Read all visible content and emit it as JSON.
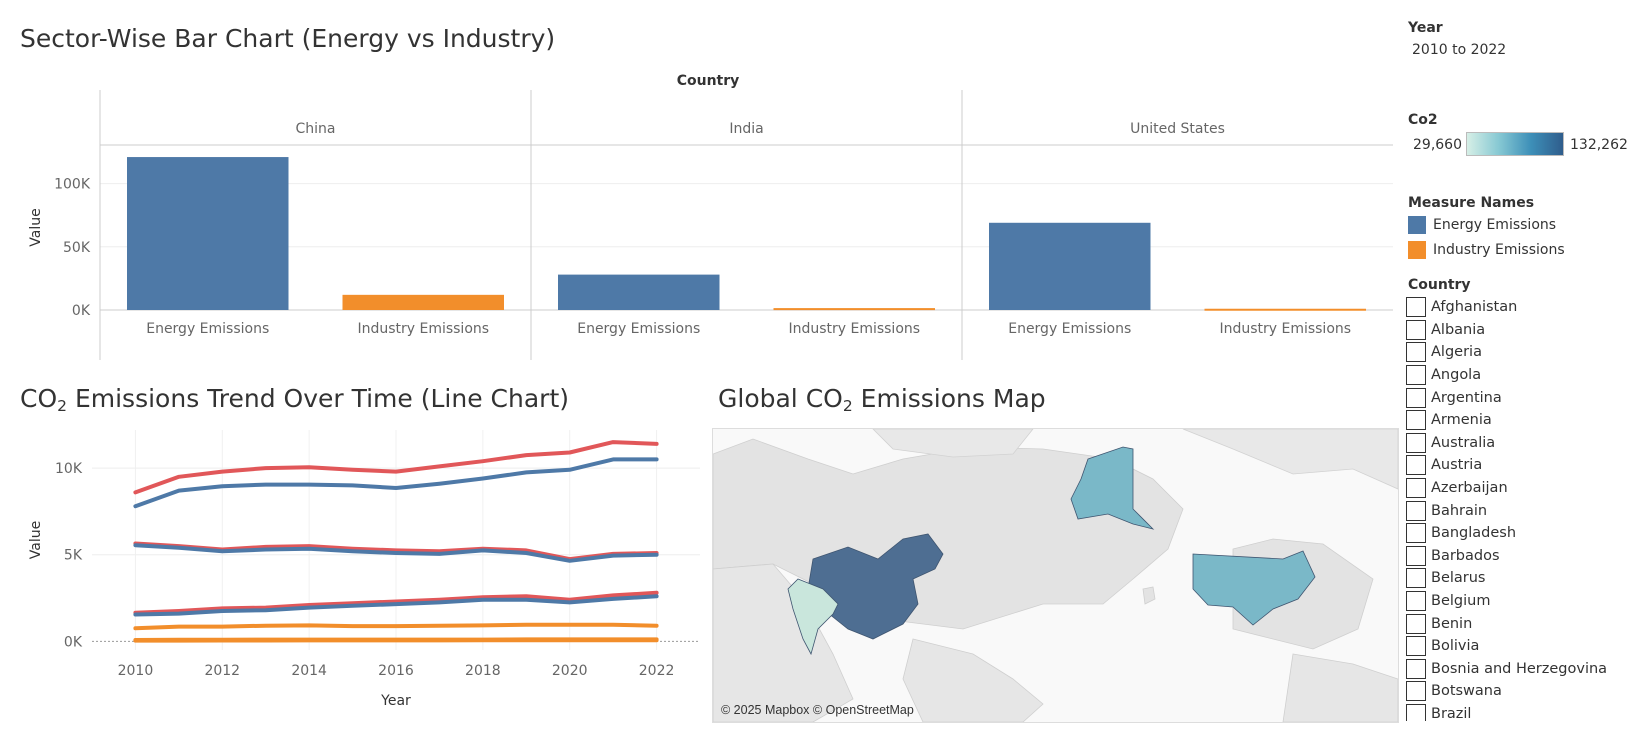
{
  "bar_panel": {
    "title": "Sector-Wise Bar Chart (Energy vs Industry)",
    "column_header": "Country"
  },
  "line_panel": {
    "title_prefix": "CO",
    "title_sub": "2",
    "title_suffix": " Emissions Trend Over Time (Line Chart)"
  },
  "map_panel": {
    "title_prefix": "Global CO",
    "title_sub": "2",
    "title_suffix": " Emissions Map",
    "attribution": "© 2025 Mapbox © OpenStreetMap",
    "highlighted_countries": [
      {
        "name": "China",
        "color": "#4e6e92"
      },
      {
        "name": "United States",
        "color": "#7ab8c8"
      },
      {
        "name": "India",
        "color": "#c9e6dc"
      }
    ]
  },
  "filters": {
    "year": {
      "label": "Year",
      "value": "2010 to 2022"
    },
    "co2": {
      "label": "Co2",
      "min": "29,660",
      "max": "132,262"
    },
    "measure_names": {
      "label": "Measure Names",
      "items": [
        {
          "name": "Energy Emissions",
          "color": "#4e79a7"
        },
        {
          "name": "Industry Emissions",
          "color": "#f28e2b"
        }
      ]
    },
    "country": {
      "label": "Country",
      "items": [
        "Afghanistan",
        "Albania",
        "Algeria",
        "Angola",
        "Argentina",
        "Armenia",
        "Australia",
        "Austria",
        "Azerbaijan",
        "Bahrain",
        "Bangladesh",
        "Barbados",
        "Belarus",
        "Belgium",
        "Benin",
        "Bolivia",
        "Bosnia and Herzegovina",
        "Botswana",
        "Brazil"
      ]
    }
  },
  "chart_data": [
    {
      "type": "bar",
      "title": "Sector-Wise Bar Chart (Energy vs Industry)",
      "facet_label": "Country",
      "facets": [
        "China",
        "India",
        "United States"
      ],
      "categories": [
        "Energy Emissions",
        "Industry Emissions"
      ],
      "colors": [
        "#4e79a7",
        "#f28e2b"
      ],
      "values": [
        [
          121000,
          12000
        ],
        [
          28000,
          1500
        ],
        [
          69000,
          1000
        ]
      ],
      "ylabel": "Value",
      "yticks": [
        0,
        50000,
        100000
      ],
      "ytick_labels": [
        "0K",
        "50K",
        "100K"
      ],
      "ylim": [
        0,
        125000
      ],
      "grid": true
    },
    {
      "type": "line",
      "title": "CO2 Emissions Trend Over Time (Line Chart)",
      "xlabel": "Year",
      "ylabel": "Value",
      "x": [
        2010,
        2011,
        2012,
        2013,
        2014,
        2015,
        2016,
        2017,
        2018,
        2019,
        2020,
        2021,
        2022
      ],
      "xticks": [
        2010,
        2012,
        2014,
        2016,
        2018,
        2020,
        2022
      ],
      "yticks": [
        0,
        5000,
        10000
      ],
      "ytick_labels": [
        "0K",
        "5K",
        "10K"
      ],
      "ylim": [
        -500,
        12200
      ],
      "xlim": [
        2009,
        2023
      ],
      "grid": true,
      "series": [
        {
          "color": "#e15759",
          "values": [
            8600,
            9500,
            9800,
            10000,
            10050,
            9900,
            9800,
            10100,
            10400,
            10750,
            10900,
            11500,
            11400
          ]
        },
        {
          "color": "#4e79a7",
          "values": [
            7800,
            8700,
            8950,
            9050,
            9050,
            9000,
            8850,
            9100,
            9400,
            9750,
            9900,
            10500,
            10500
          ]
        },
        {
          "color": "#e15759",
          "values": [
            5650,
            5500,
            5300,
            5450,
            5500,
            5350,
            5250,
            5200,
            5350,
            5250,
            4750,
            5050,
            5100
          ]
        },
        {
          "color": "#4e79a7",
          "values": [
            5550,
            5400,
            5200,
            5300,
            5350,
            5200,
            5100,
            5050,
            5250,
            5100,
            4650,
            4950,
            5000
          ]
        },
        {
          "color": "#e15759",
          "values": [
            1650,
            1750,
            1900,
            1950,
            2100,
            2200,
            2300,
            2400,
            2550,
            2600,
            2400,
            2650,
            2800
          ]
        },
        {
          "color": "#4e79a7",
          "values": [
            1550,
            1600,
            1750,
            1800,
            1950,
            2050,
            2150,
            2250,
            2400,
            2400,
            2250,
            2450,
            2600
          ]
        },
        {
          "color": "#f28e2b",
          "values": [
            750,
            850,
            850,
            900,
            920,
            880,
            880,
            900,
            920,
            960,
            960,
            960,
            900
          ]
        },
        {
          "color": "#f28e2b",
          "values": [
            80,
            90,
            90,
            100,
            100,
            100,
            100,
            100,
            100,
            110,
            110,
            110,
            110
          ]
        },
        {
          "color": "#f28e2b",
          "values": [
            40,
            45,
            50,
            50,
            55,
            55,
            55,
            55,
            60,
            60,
            60,
            60,
            60
          ]
        }
      ]
    }
  ]
}
